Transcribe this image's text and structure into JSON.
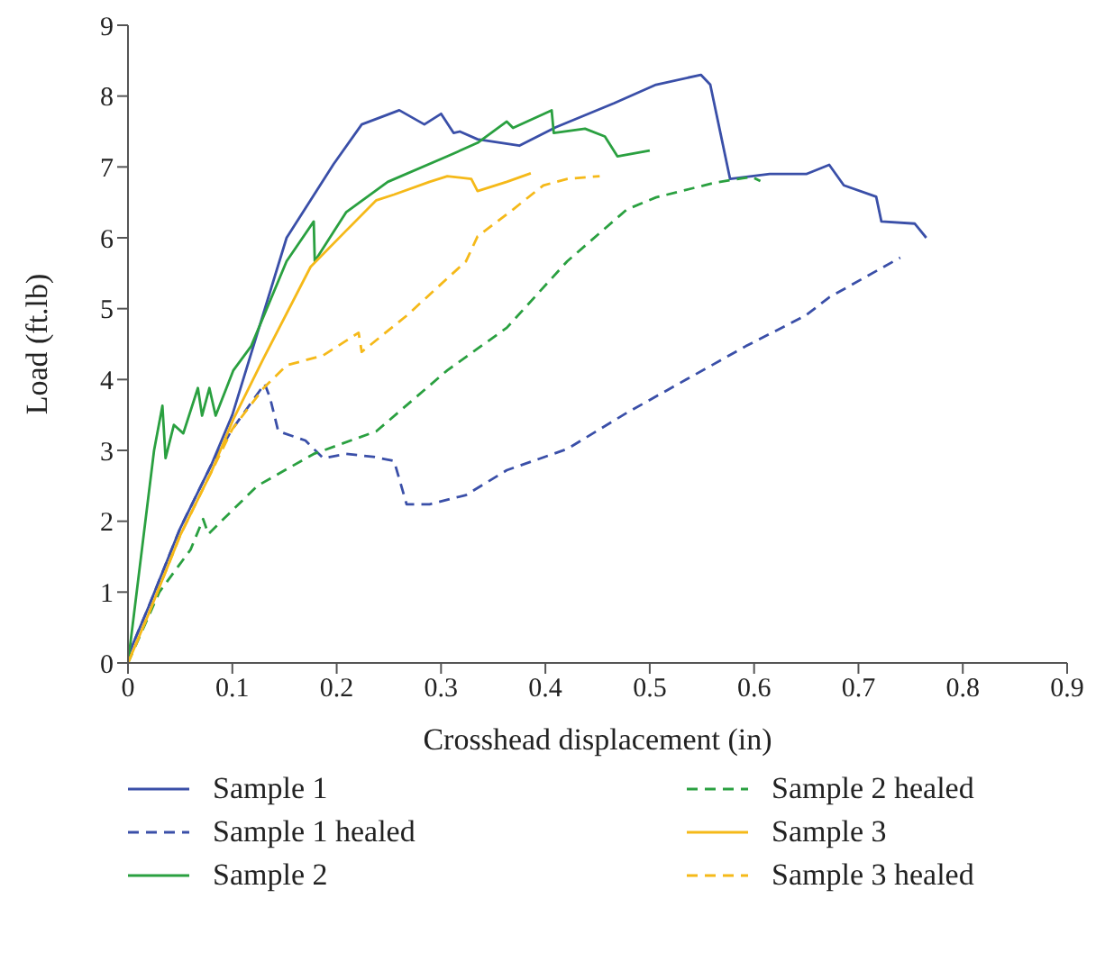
{
  "chart_data": {
    "type": "line",
    "xlabel": "Crosshead displacement (in)",
    "ylabel": "Load (ft.lb)",
    "xlim": [
      0,
      0.9
    ],
    "xticks": [
      0,
      0.1,
      0.2,
      0.3,
      0.4,
      0.5,
      0.6,
      0.7,
      0.8,
      0.9
    ],
    "ylim": [
      0,
      9
    ],
    "yticks": [
      0,
      1,
      2,
      3,
      4,
      5,
      6,
      7,
      8,
      9
    ],
    "grid": false,
    "legend": "bottom",
    "marker": "none",
    "series": [
      {
        "name": "Sample 1",
        "color": "#3a4fa8",
        "line_style": "solid",
        "x": [
          0,
          0.02,
          0.05,
          0.08,
          0.1,
          0.152,
          0.197,
          0.224,
          0.26,
          0.284,
          0.3,
          0.312,
          0.318,
          0.335,
          0.375,
          0.41,
          0.466,
          0.506,
          0.549,
          0.558,
          0.569,
          0.577,
          0.615,
          0.65,
          0.672,
          0.686,
          0.717,
          0.722,
          0.754,
          0.765
        ],
        "values": [
          0.1,
          0.8,
          1.9,
          2.8,
          3.5,
          6.0,
          7.04,
          7.6,
          7.8,
          7.6,
          7.75,
          7.48,
          7.5,
          7.39,
          7.3,
          7.56,
          7.9,
          8.16,
          8.3,
          8.16,
          7.39,
          6.83,
          6.9,
          6.9,
          7.03,
          6.74,
          6.58,
          6.23,
          6.2,
          6.0
        ]
      },
      {
        "name": "Sample 1 healed",
        "color": "#3a4fa8",
        "line_style": "dashed",
        "x": [
          0,
          0.02,
          0.05,
          0.08,
          0.1,
          0.131,
          0.136,
          0.144,
          0.17,
          0.187,
          0.209,
          0.235,
          0.255,
          0.267,
          0.289,
          0.324,
          0.363,
          0.421,
          0.478,
          0.535,
          0.592,
          0.649,
          0.672,
          0.74
        ],
        "values": [
          0.1,
          0.8,
          1.9,
          2.8,
          3.3,
          3.94,
          3.75,
          3.27,
          3.14,
          2.89,
          2.95,
          2.91,
          2.85,
          2.24,
          2.24,
          2.37,
          2.72,
          3.02,
          3.53,
          4.0,
          4.47,
          4.9,
          5.16,
          5.72
        ]
      },
      {
        "name": "Sample 2",
        "color": "#2aa040",
        "line_style": "solid",
        "x": [
          0,
          0.005,
          0.015,
          0.025,
          0.033,
          0.036,
          0.044,
          0.053,
          0.067,
          0.071,
          0.078,
          0.084,
          0.101,
          0.118,
          0.152,
          0.178,
          0.179,
          0.209,
          0.249,
          0.306,
          0.335,
          0.363,
          0.369,
          0.406,
          0.408,
          0.438,
          0.457,
          0.469,
          0.5
        ],
        "values": [
          0,
          0.6,
          1.8,
          3.0,
          3.63,
          2.89,
          3.36,
          3.24,
          3.88,
          3.49,
          3.88,
          3.49,
          4.13,
          4.47,
          5.67,
          6.23,
          5.67,
          6.36,
          6.79,
          7.15,
          7.34,
          7.64,
          7.55,
          7.8,
          7.48,
          7.54,
          7.43,
          7.15,
          7.23
        ]
      },
      {
        "name": "Sample 2 healed",
        "color": "#2aa040",
        "line_style": "dashed",
        "x": [
          0,
          0.03,
          0.06,
          0.072,
          0.077,
          0.124,
          0.178,
          0.238,
          0.306,
          0.363,
          0.421,
          0.478,
          0.506,
          0.563,
          0.598,
          0.606
        ],
        "values": [
          0,
          1.0,
          1.6,
          2.03,
          1.82,
          2.5,
          2.95,
          3.27,
          4.13,
          4.73,
          5.67,
          6.4,
          6.57,
          6.78,
          6.86,
          6.8
        ]
      },
      {
        "name": "Sample 3",
        "color": "#f5b919",
        "line_style": "solid",
        "x": [
          0,
          0.02,
          0.05,
          0.08,
          0.101,
          0.13,
          0.175,
          0.209,
          0.238,
          0.255,
          0.289,
          0.306,
          0.329,
          0.335,
          0.363,
          0.386
        ],
        "values": [
          0,
          0.7,
          1.8,
          2.7,
          3.44,
          4.3,
          5.59,
          6.1,
          6.53,
          6.61,
          6.79,
          6.87,
          6.83,
          6.66,
          6.79,
          6.91
        ]
      },
      {
        "name": "Sample 3 healed",
        "color": "#f5b919",
        "line_style": "dashed",
        "x": [
          0,
          0.02,
          0.05,
          0.08,
          0.1,
          0.13,
          0.152,
          0.187,
          0.221,
          0.224,
          0.267,
          0.324,
          0.335,
          0.369,
          0.398,
          0.421,
          0.452
        ],
        "values": [
          0,
          0.7,
          1.8,
          2.7,
          3.3,
          3.88,
          4.2,
          4.34,
          4.66,
          4.39,
          4.9,
          5.67,
          6.02,
          6.4,
          6.74,
          6.83,
          6.87
        ]
      }
    ]
  }
}
